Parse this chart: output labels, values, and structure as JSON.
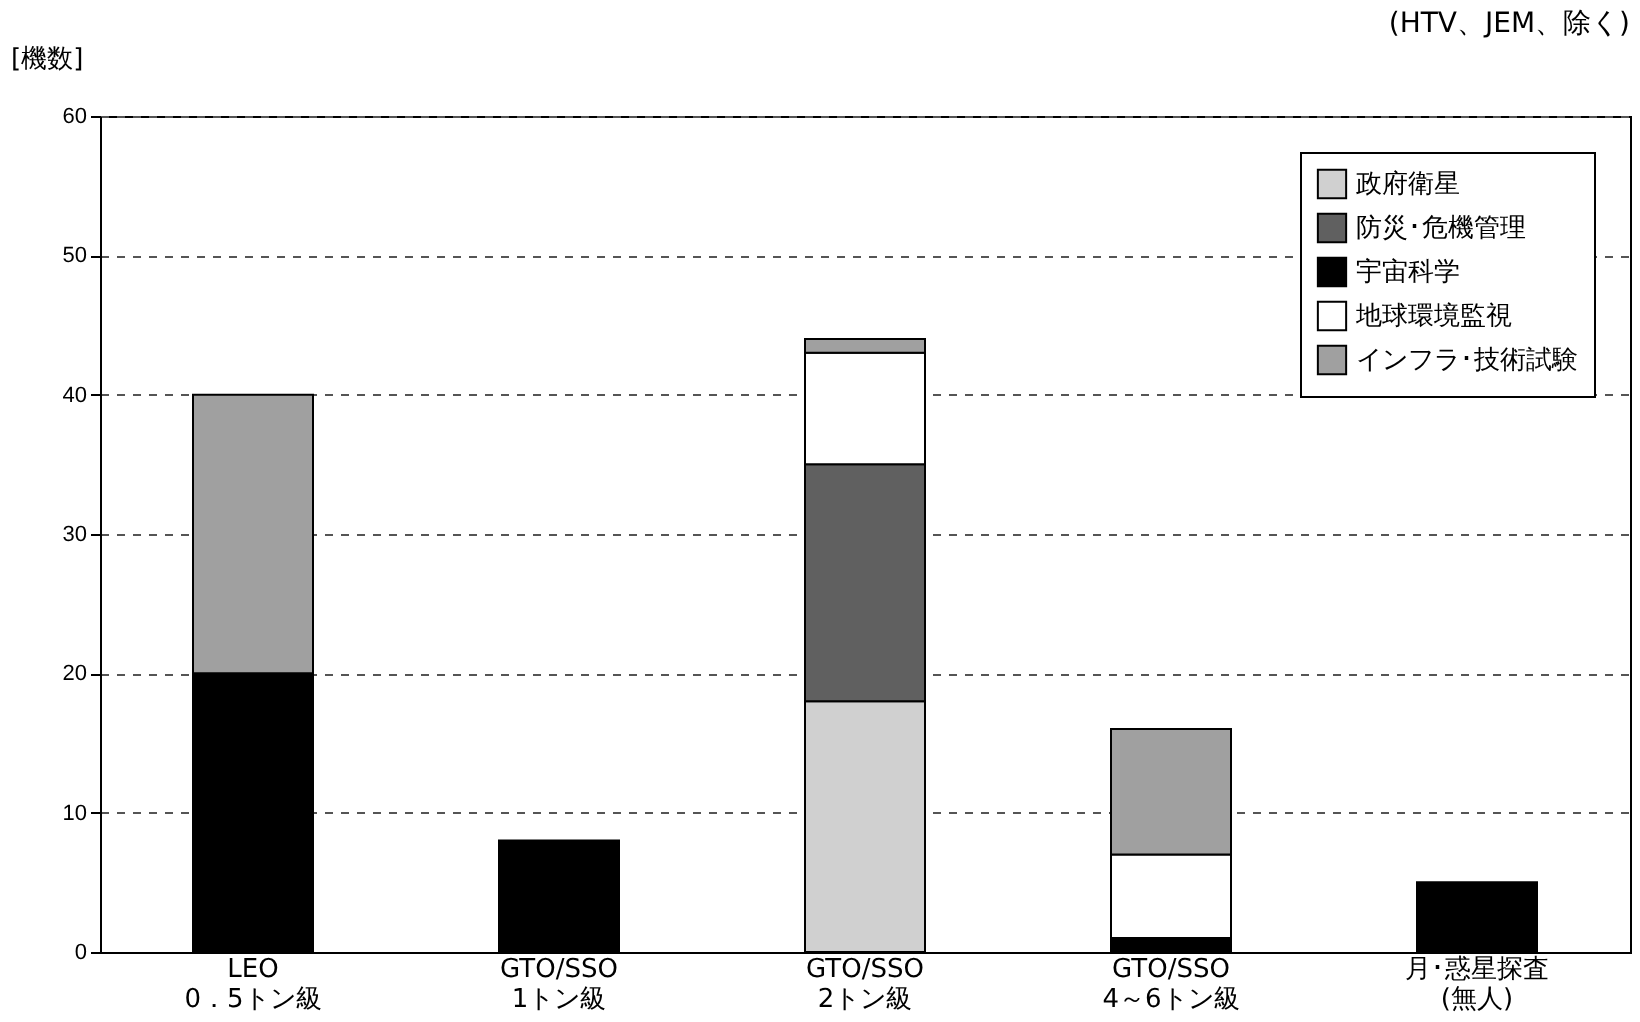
{
  "chart_data": {
    "type": "bar",
    "stacked": true,
    "ylabel": "[機数]",
    "annotations": [
      "(HTV、JEM、除く)"
    ],
    "categories": [
      "LEO\n0．5トン級",
      "GTO/SSO\n1トン級",
      "GTO/SSO\n2トン級",
      "GTO/SSO\n4～6トン級",
      "月･惑星探査\n(無人)"
    ],
    "series": [
      {
        "name": "政府衛星",
        "color": "#d0d0d0",
        "values": [
          null,
          null,
          18,
          null,
          null
        ]
      },
      {
        "name": "防災･危機管理",
        "color": "#606060",
        "values": [
          null,
          null,
          17,
          null,
          null
        ]
      },
      {
        "name": "宇宙科学",
        "color": "#000000",
        "values": [
          20,
          8,
          null,
          1,
          5
        ]
      },
      {
        "name": "地球環境監視",
        "color": "#ffffff",
        "values": [
          null,
          null,
          8,
          6,
          null
        ]
      },
      {
        "name": "インフラ･技術試験",
        "color": "#a0a0a0",
        "values": [
          20,
          null,
          1,
          9,
          null
        ]
      }
    ],
    "ylim": [
      0,
      60
    ],
    "yticks": [
      0,
      10,
      20,
      30,
      40,
      50,
      60
    ],
    "grid": "y",
    "legend": "top right"
  }
}
